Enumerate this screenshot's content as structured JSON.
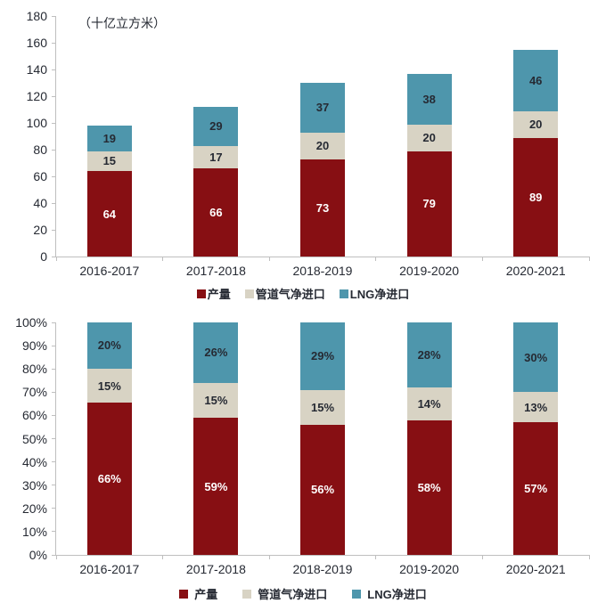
{
  "colors": {
    "production": "#870f13",
    "pipeline": "#d8d3c4",
    "lng": "#4e96ac",
    "axis_line": "#bfbfbf",
    "text_dark": "#262a33",
    "text_on_dark": "#ffffff"
  },
  "legend": {
    "items": [
      {
        "key": "production",
        "label": "产量"
      },
      {
        "key": "pipeline",
        "label": "管道气净进口"
      },
      {
        "key": "lng",
        "label": "LNG净进口"
      }
    ]
  },
  "chart_data": [
    {
      "type": "bar",
      "stacked": true,
      "stack": "absolute",
      "unit_label": "（十亿立方米）",
      "categories": [
        "2016-2017",
        "2017-2018",
        "2018-2019",
        "2019-2020",
        "2020-2021"
      ],
      "series": [
        {
          "key": "production",
          "name": "产量",
          "values": [
            64,
            66,
            73,
            79,
            89
          ]
        },
        {
          "key": "pipeline",
          "name": "管道气净进口",
          "values": [
            15,
            17,
            20,
            20,
            20
          ]
        },
        {
          "key": "lng",
          "name": "LNG净进口",
          "values": [
            19,
            29,
            37,
            38,
            46
          ]
        }
      ],
      "ylim": [
        0,
        180
      ],
      "ytick_labels": [
        "0",
        "20",
        "40",
        "60",
        "80",
        "100",
        "120",
        "140",
        "160",
        "180"
      ],
      "value_suffix": "",
      "grid": false,
      "legend_position": "bottom"
    },
    {
      "type": "bar",
      "stacked": true,
      "stack": "percent",
      "unit_label": "",
      "categories": [
        "2016-2017",
        "2017-2018",
        "2018-2019",
        "2019-2020",
        "2020-2021"
      ],
      "series": [
        {
          "key": "production",
          "name": "产量",
          "values": [
            66,
            59,
            56,
            58,
            57
          ]
        },
        {
          "key": "pipeline",
          "name": "管道气净进口",
          "values": [
            15,
            15,
            15,
            14,
            13
          ]
        },
        {
          "key": "lng",
          "name": "LNG净进口",
          "values": [
            20,
            26,
            29,
            28,
            30
          ]
        }
      ],
      "ylim": [
        0,
        100
      ],
      "ytick_labels": [
        "0%",
        "10%",
        "20%",
        "30%",
        "40%",
        "50%",
        "60%",
        "70%",
        "80%",
        "90%",
        "100%"
      ],
      "value_suffix": "%",
      "grid": false,
      "legend_position": "bottom"
    }
  ]
}
